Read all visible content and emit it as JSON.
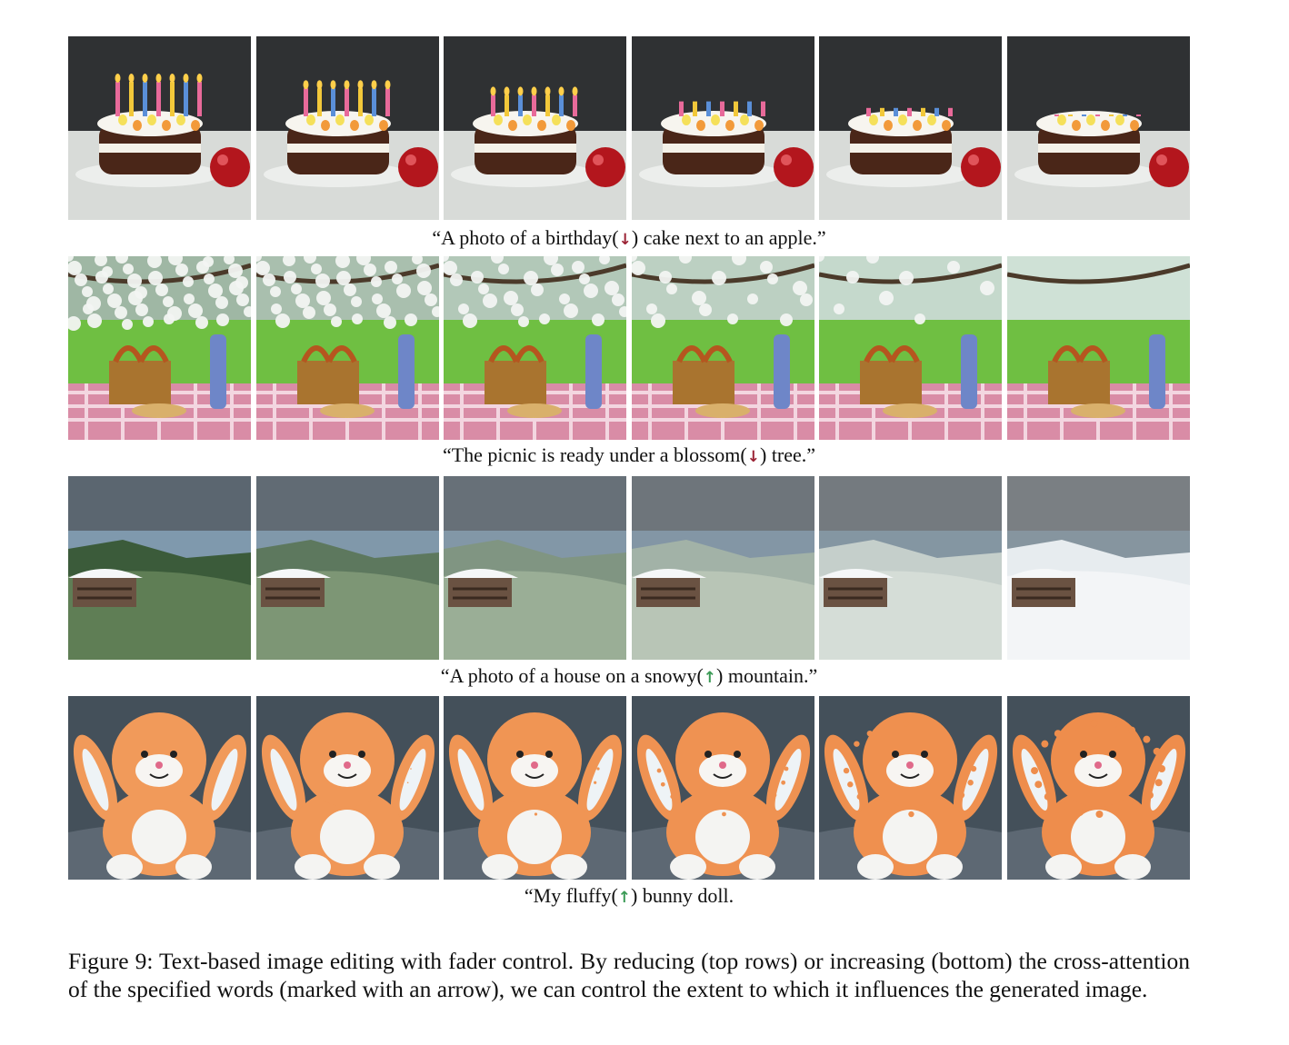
{
  "rows": [
    {
      "scene": "cake",
      "quote_open": "“A photo of a ",
      "word": "birthday",
      "arrow": "↓",
      "direction": "down",
      "quote_close": " cake next to an apple.”",
      "strength": [
        1.0,
        0.8,
        0.6,
        0.4,
        0.2,
        0.0
      ]
    },
    {
      "scene": "picnic",
      "quote_open": "“The picnic is ready under a ",
      "word": "blossom",
      "arrow": "↓",
      "direction": "down",
      "quote_close": " tree.”",
      "strength": [
        1.0,
        0.8,
        0.6,
        0.4,
        0.2,
        0.0
      ]
    },
    {
      "scene": "snow",
      "quote_open": "“A photo of a house on a ",
      "word": "snowy",
      "arrow": "↑",
      "direction": "up",
      "quote_close": " mountain.”",
      "strength": [
        0.0,
        0.2,
        0.4,
        0.6,
        0.8,
        1.0
      ]
    },
    {
      "scene": "bunny",
      "quote_open": "“My ",
      "word": "fluffy",
      "arrow": "↑",
      "direction": "up",
      "quote_close": " bunny doll.",
      "strength": [
        0.0,
        0.2,
        0.4,
        0.6,
        0.8,
        1.0
      ]
    }
  ],
  "figure_caption": "Figure 9: Text-based image editing with fader control. By reducing (top rows) or increasing (bottom) the cross-attention of the specified words (marked with an arrow), we can control the extent to which it influences the generated image."
}
